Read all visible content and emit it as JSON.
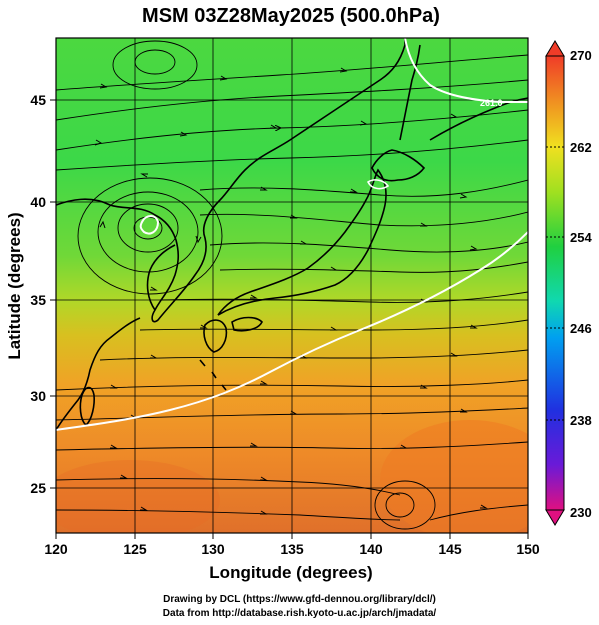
{
  "title": "MSM 03Z28May2025 (500.0hPa)",
  "x_axis": {
    "label": "Longitude (degrees)",
    "range": [
      120,
      150
    ],
    "ticks": [
      "120",
      "125",
      "130",
      "135",
      "140",
      "145",
      "150"
    ]
  },
  "y_axis": {
    "label": "Latitude  (degrees)",
    "range": [
      22.4,
      47.6
    ],
    "ticks": [
      "25",
      "30",
      "35",
      "40",
      "45"
    ]
  },
  "colorbar": {
    "range": [
      230,
      270
    ],
    "ticks": [
      "270",
      "262",
      "254",
      "246",
      "238",
      "230"
    ],
    "colors": [
      "#e01080",
      "#6a1ad8",
      "#2030e0",
      "#00a0f0",
      "#10d8b0",
      "#20d040",
      "#a0e020",
      "#f0e020",
      "#f0a020",
      "#f06020",
      "#f03c28"
    ]
  },
  "map_content": {
    "field": "temperature",
    "overlay": "streamlines",
    "contour_label": "261.0"
  },
  "credits": {
    "line1": "Drawing by DCL (https://www.gfd-dennou.org/library/dcl/)",
    "line2": "Data from http://database.rish.kyoto-u.ac.jp/arch/jmadata/"
  }
}
